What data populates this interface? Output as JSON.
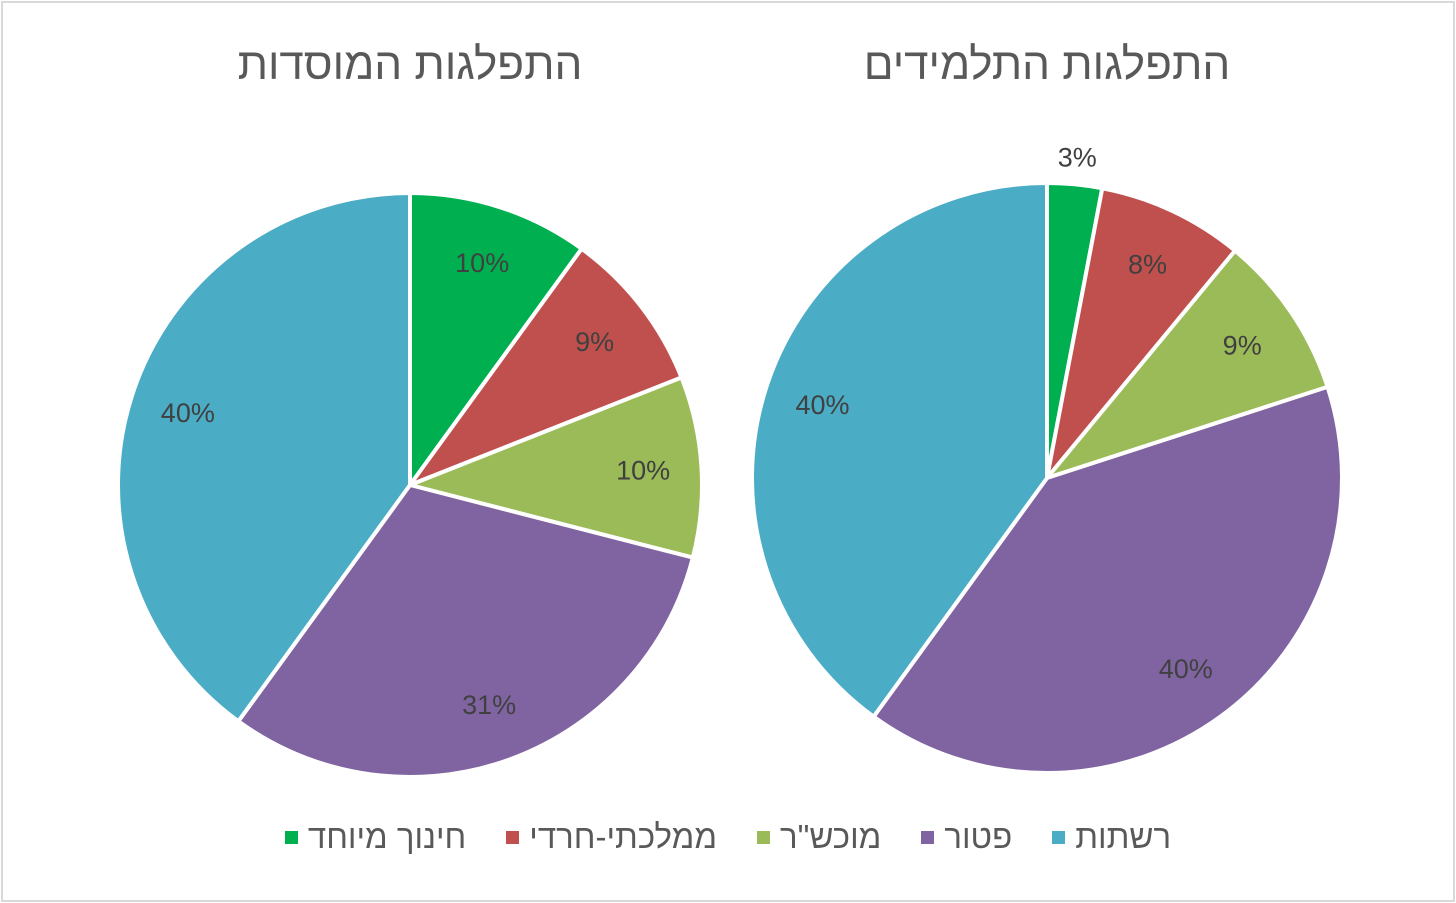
{
  "chart_data": [
    {
      "type": "pie",
      "title": "התפלגות המוסדות",
      "categories": [
        "חינוך מיוחד",
        "ממלכתי-חרדי",
        "מוכש\"ר",
        "פטור",
        "רשתות"
      ],
      "values": [
        10,
        9,
        10,
        31,
        40
      ],
      "labels": [
        "10%",
        "9%",
        "10%",
        "31%",
        "40%"
      ]
    },
    {
      "type": "pie",
      "title": "התפלגות התלמידים",
      "categories": [
        "חינוך מיוחד",
        "ממלכתי-חרדי",
        "מוכש\"ר",
        "פטור",
        "רשתות"
      ],
      "values": [
        3,
        8,
        9,
        40,
        40
      ],
      "labels": [
        "3%",
        "8%",
        "9%",
        "40%",
        "40%"
      ]
    }
  ],
  "legend": {
    "placement": "bottom",
    "items": [
      {
        "label": "רשתות",
        "color": "#4bacc6"
      },
      {
        "label": "פטור",
        "color": "#8064a2"
      },
      {
        "label": "מוכש\"ר",
        "color": "#9bbb59"
      },
      {
        "label": "ממלכתי-חרדי",
        "color": "#c0504d"
      },
      {
        "label": "חינוך מיוחד",
        "color": "#00b050"
      }
    ]
  },
  "colors": [
    "#00b050",
    "#c0504d",
    "#9bbb59",
    "#8064a2",
    "#4bacc6"
  ]
}
